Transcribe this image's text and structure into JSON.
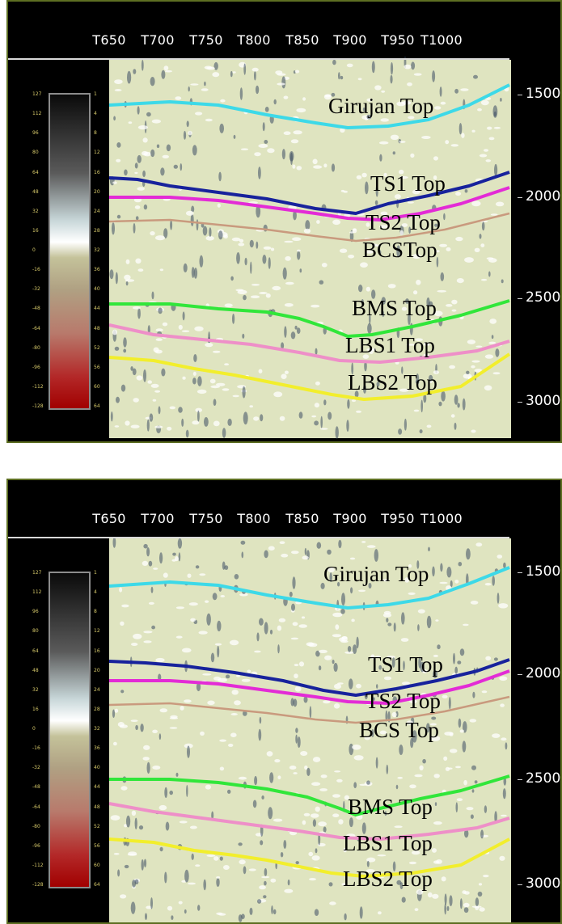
{
  "colors": {
    "girujan": "#3dd9e8",
    "ts1": "#17229c",
    "ts2": "#e32bd6",
    "bcs": "#c99a7e",
    "bms": "#31e63a",
    "lbs1": "#ee8fc8",
    "lbs2": "#f2ee2c",
    "background": "#000000",
    "frame": "#5d6e22",
    "seismic": "#dfe4c0"
  },
  "panels": [
    {
      "id": "top",
      "trace_labels": [
        "T650",
        "T700",
        "T750",
        "T800",
        "T850",
        "T900",
        "T950",
        "T1000"
      ],
      "depth_labels": [
        "1500",
        "2000",
        "2500",
        "3000"
      ],
      "horizon_labels": [
        "Girujan Top",
        "TS1 Top",
        "TS2 Top",
        "BCSTop",
        "BMS Top",
        "LBS1 Top",
        "LBS2 Top"
      ],
      "scale_left": [
        "127",
        "112",
        "96",
        "80",
        "64",
        "48",
        "32",
        "16",
        "0",
        "-16",
        "-32",
        "-48",
        "-64",
        "-80",
        "-96",
        "-112",
        "-128"
      ],
      "scale_right": [
        "1",
        "4",
        "8",
        "12",
        "16",
        "20",
        "24",
        "28",
        "32",
        "36",
        "40",
        "44",
        "48",
        "52",
        "56",
        "60",
        "64"
      ]
    },
    {
      "id": "bottom",
      "trace_labels": [
        "T650",
        "T700",
        "T750",
        "T800",
        "T850",
        "T900",
        "T950",
        "T1000"
      ],
      "depth_labels": [
        "1500",
        "2000",
        "2500",
        "3000"
      ],
      "horizon_labels": [
        "Girujan Top",
        "TS1 Top",
        "TS2 Top",
        "BCS Top",
        "BMS Top",
        "LBS1 Top",
        "LBS2 Top"
      ],
      "scale_left": [
        "127",
        "112",
        "96",
        "80",
        "64",
        "48",
        "32",
        "16",
        "0",
        "-16",
        "-32",
        "-48",
        "-64",
        "-80",
        "-96",
        "-112",
        "-128"
      ],
      "scale_right": [
        "1",
        "4",
        "8",
        "12",
        "16",
        "20",
        "24",
        "28",
        "32",
        "36",
        "40",
        "44",
        "48",
        "52",
        "56",
        "60",
        "64"
      ]
    }
  ]
}
